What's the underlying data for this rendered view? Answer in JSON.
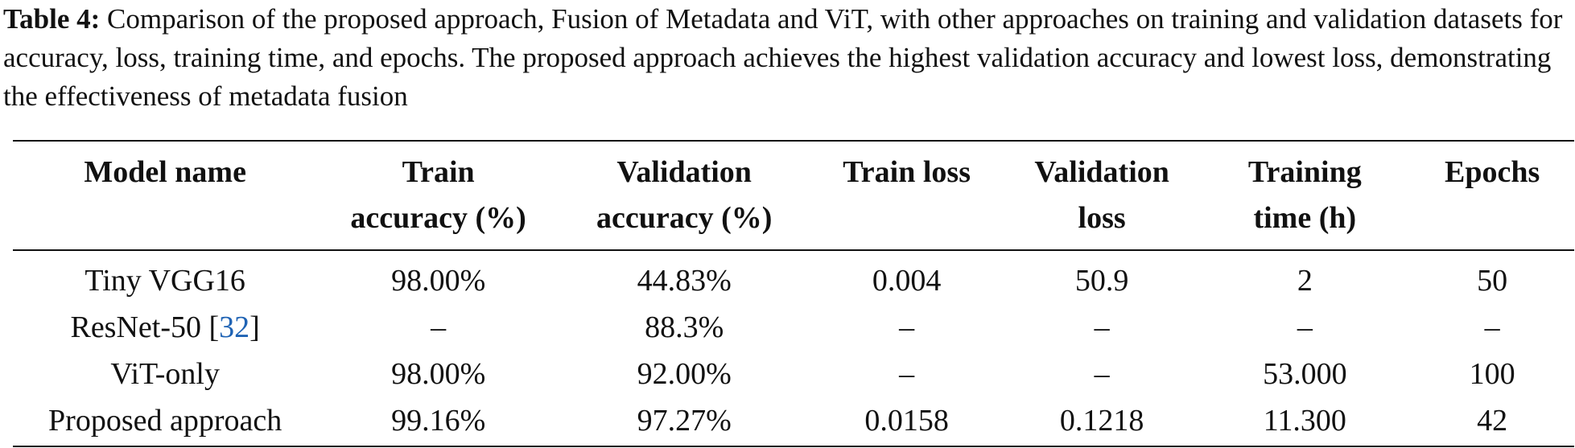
{
  "caption": {
    "label": "Table 4:",
    "text": "Comparison of the proposed approach, Fusion of Metadata and ViT, with other approaches on training and validation datasets for accuracy, loss, training time, and epochs. The proposed approach achieves the highest validation accuracy and lowest loss, demonstrating the effectiveness of metadata fusion"
  },
  "table": {
    "headers": [
      {
        "line1": "Model name",
        "line2": ""
      },
      {
        "line1": "Train",
        "line2": "accuracy (%)"
      },
      {
        "line1": "Validation",
        "line2": "accuracy (%)"
      },
      {
        "line1": "Train loss",
        "line2": ""
      },
      {
        "line1": "Validation",
        "line2": "loss"
      },
      {
        "line1": "Training",
        "line2": "time (h)"
      },
      {
        "line1": "Epochs",
        "line2": ""
      }
    ],
    "rows": [
      {
        "model": "Tiny VGG16",
        "cite": "",
        "train_acc": "98.00%",
        "val_acc": "44.83%",
        "train_loss": "0.004",
        "val_loss": "50.9",
        "time": "2",
        "epochs": "50"
      },
      {
        "model": "ResNet-50 [",
        "cite": "32",
        "cite_close": "]",
        "train_acc": "–",
        "val_acc": "88.3%",
        "train_loss": "–",
        "val_loss": "–",
        "time": "–",
        "epochs": "–"
      },
      {
        "model": "ViT-only",
        "cite": "",
        "train_acc": "98.00%",
        "val_acc": "92.00%",
        "train_loss": "–",
        "val_loss": "–",
        "time": "53.000",
        "epochs": "100"
      },
      {
        "model": "Proposed approach",
        "cite": "",
        "train_acc": "99.16%",
        "val_acc": "97.27%",
        "train_loss": "0.0158",
        "val_loss": "0.1218",
        "time": "11.300",
        "epochs": "42"
      }
    ]
  }
}
